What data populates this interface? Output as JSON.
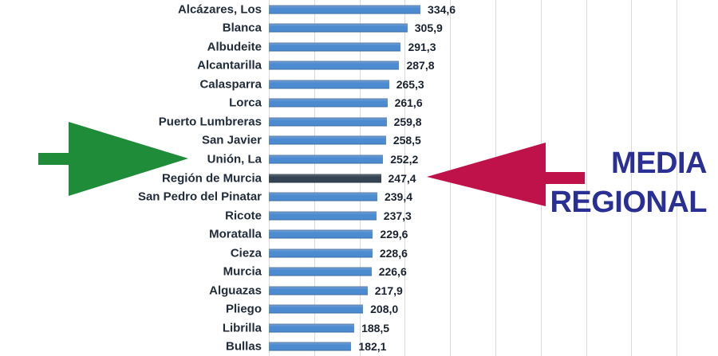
{
  "chart_data": {
    "type": "bar",
    "orientation": "horizontal",
    "title": "",
    "xlabel": "",
    "ylabel": "",
    "categories": [
      "Alcázares, Los",
      "Blanca",
      "Albudeite",
      "Alcantarilla",
      "Calasparra",
      "Lorca",
      "Puerto Lumbreras",
      "San Javier",
      "Unión, La",
      "Región de Murcia",
      "San Pedro del Pinatar",
      "Ricote",
      "Moratalla",
      "Cieza",
      "Murcia",
      "Alguazas",
      "Pliego",
      "Librilla",
      "Bullas"
    ],
    "values": [
      334.6,
      305.9,
      291.3,
      287.8,
      265.3,
      261.6,
      259.8,
      258.5,
      252.2,
      247.4,
      239.4,
      237.3,
      229.6,
      228.6,
      226.6,
      217.9,
      208.0,
      188.5,
      182.1
    ],
    "value_labels": [
      "334,6",
      "305,9",
      "291,3",
      "287,8",
      "265,3",
      "261,6",
      "259,8",
      "258,5",
      "252,2",
      "247,4",
      "239,4",
      "237,3",
      "229,6",
      "228,6",
      "226,6",
      "217,9",
      "208,0",
      "188,5",
      "182,1"
    ],
    "highlight_category": "Región de Murcia",
    "grid": true,
    "legend": false,
    "axis_tick_labels_visible": false,
    "x_gridline_interval": 100,
    "x_axis_visible_range": [
      0,
      1000
    ],
    "colors": {
      "bar": "#4d8bd0",
      "highlight_bar": "#344454",
      "gridline": "#d9d9d9",
      "category_text": "#202c3a",
      "value_text": "#1a2230"
    }
  },
  "annotations": {
    "green_arrow": {
      "icon": "arrow-right-icon",
      "color": "#1f8c39",
      "points_to": "Unión, La"
    },
    "red_arrow": {
      "icon": "arrow-left-icon",
      "color": "#c0124a",
      "points_to": "Región de Murcia"
    },
    "media_regional": {
      "line1": "MEDIA",
      "line2": "REGIONAL",
      "color": "#2a2f93"
    }
  }
}
